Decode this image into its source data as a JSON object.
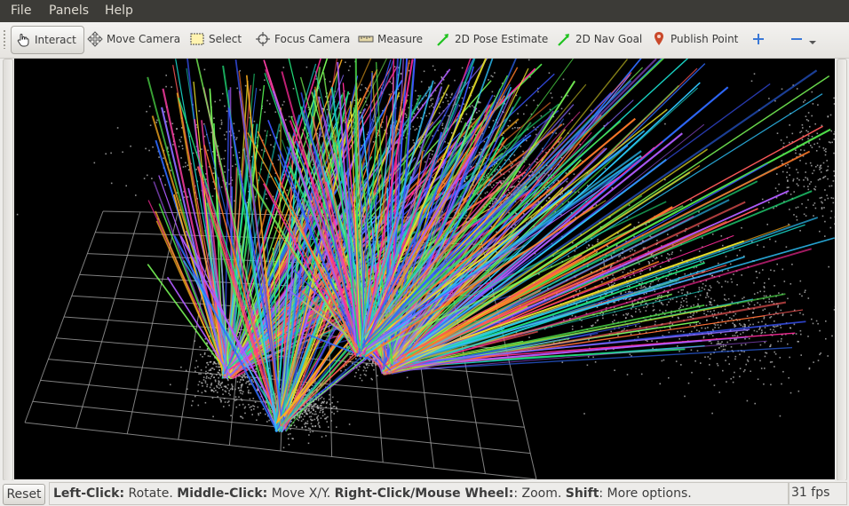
{
  "menu": {
    "file": "File",
    "panels": "Panels",
    "help": "Help"
  },
  "toolbar": {
    "interact": "Interact",
    "move_camera": "Move Camera",
    "select": "Select",
    "focus_camera": "Focus Camera",
    "measure": "Measure",
    "pose_estimate": "2D Pose Estimate",
    "nav_goal": "2D Nav Goal",
    "publish_point": "Publish Point"
  },
  "status": {
    "reset": "Reset",
    "hint": [
      {
        "bold": "Left-Click:",
        "text": " Rotate. "
      },
      {
        "bold": "Middle-Click:",
        "text": " Move X/Y. "
      },
      {
        "bold": "Right-Click/Mouse Wheel:",
        "text": ": Zoom. "
      },
      {
        "bold": "Shift",
        "text": ": More options."
      }
    ],
    "fps": "31 fps"
  },
  "colors": {
    "menubar_bg": "#3c3b37",
    "viewport_bg": "#000000",
    "grid": "#a0a0a0",
    "point_cloud": "#bdbdbd",
    "ray_palette": [
      "#ff2a9a",
      "#ff3fa8",
      "#3a55ff",
      "#2f6bff",
      "#22e07a",
      "#4fe04a",
      "#19d6c8",
      "#2fc7ff",
      "#8a6bff",
      "#b05cff",
      "#ffb020",
      "#ff7a2a",
      "#e8e02a",
      "#7cff5a",
      "#ff5a5a"
    ]
  }
}
